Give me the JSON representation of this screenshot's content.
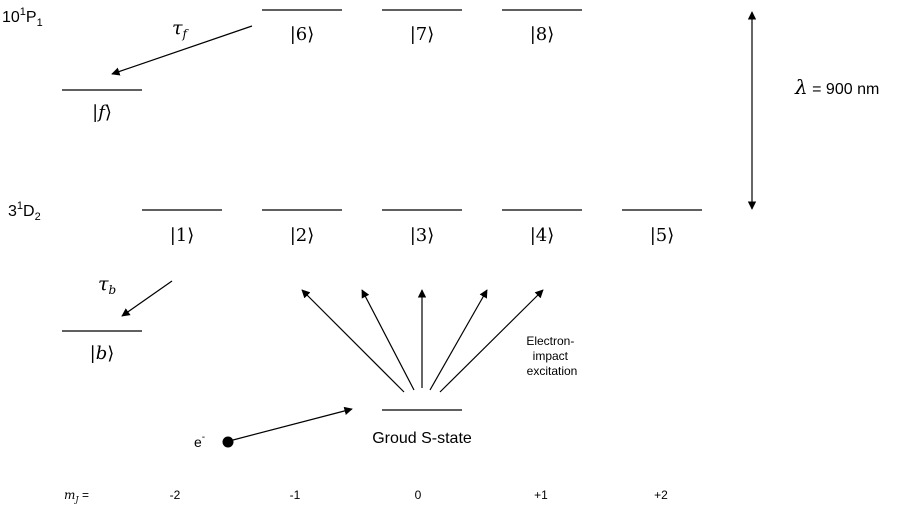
{
  "terms": {
    "upper": {
      "main": "10",
      "sup": "1",
      "letter": "P",
      "sub": "1"
    },
    "lower": {
      "main": "3",
      "sup": "1",
      "letter": "D",
      "sub": "2"
    }
  },
  "wavelength": {
    "symbol": "λ",
    "text": " = 900 nm"
  },
  "states": {
    "s1": "|1⟩",
    "s2": "|2⟩",
    "s3": "|3⟩",
    "s4": "|4⟩",
    "s5": "|5⟩",
    "s6": "|6⟩",
    "s7": "|7⟩",
    "s8": "|8⟩",
    "f": {
      "open": "|",
      "var": "f",
      "close": "⟩"
    },
    "b": {
      "open": "|",
      "var": "b",
      "close": "⟩"
    }
  },
  "decays": {
    "tau_f": {
      "base": "τ",
      "sub": "f"
    },
    "tau_b": {
      "base": "τ",
      "sub": "b"
    }
  },
  "excitation": {
    "line1": "Electron-",
    "line2": "impact",
    "line3": "excitation"
  },
  "electron": {
    "base": "e",
    "sup": "-"
  },
  "ground_label": "Groud S-state",
  "mj": {
    "label_var": "m",
    "label_sub": "J",
    "label_eq": " =",
    "values": [
      "-2",
      "-1",
      "0",
      "+1",
      "+2"
    ]
  }
}
